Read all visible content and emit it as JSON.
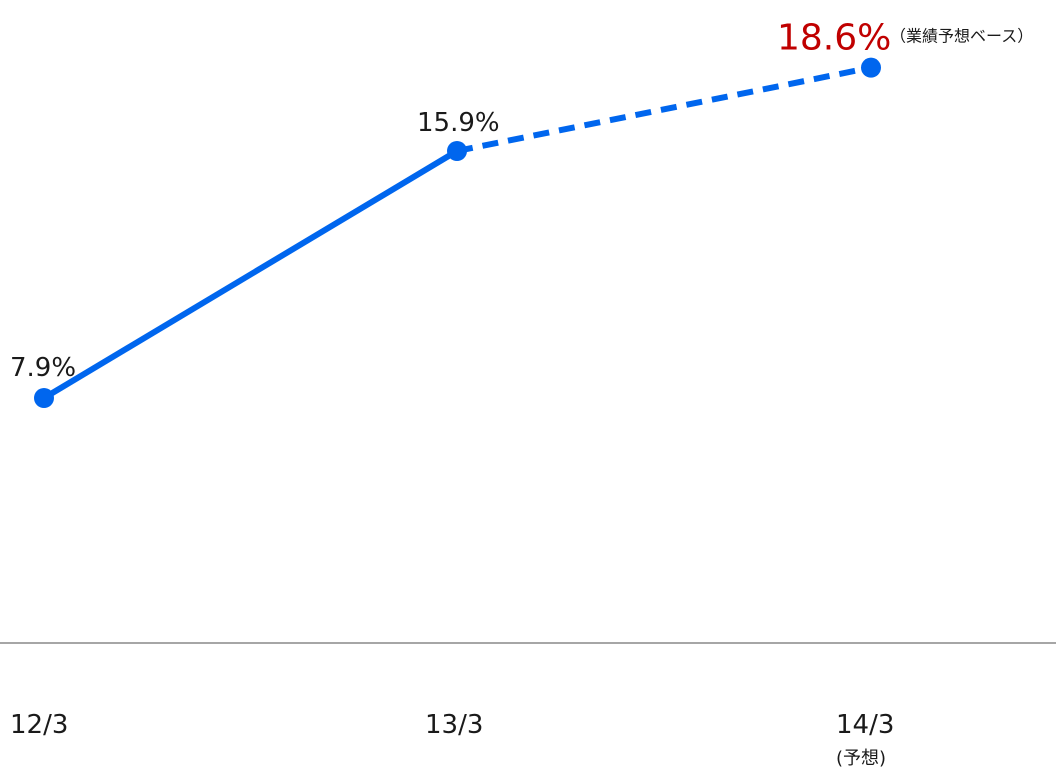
{
  "chart_data": {
    "type": "line",
    "categories": [
      "12/3",
      "13/3",
      "14/3"
    ],
    "category_notes": [
      "",
      "",
      "(予想)"
    ],
    "values": [
      7.9,
      15.9,
      18.6
    ],
    "value_labels": [
      "7.9%",
      "15.9%",
      "18.6%"
    ],
    "highlight_annotation": "（業績予想ベース）",
    "dashed_from_index": 1,
    "ylim": [
      0,
      20
    ],
    "grid": false,
    "legend": "none",
    "colors": {
      "line": "#0066EE",
      "marker": "#0066EE",
      "highlight_label": "#C00000",
      "axis": "#888888"
    }
  }
}
